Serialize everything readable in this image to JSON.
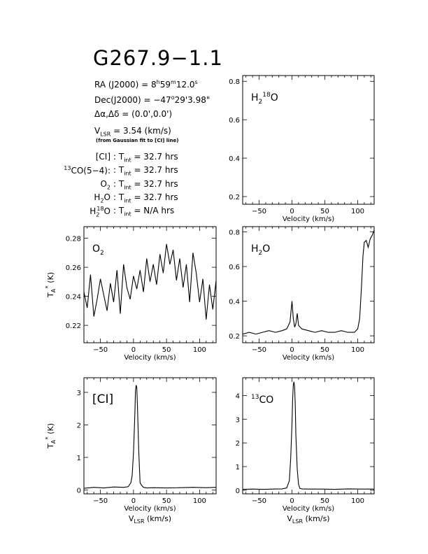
{
  "header": {
    "title": "G267.9−1.1",
    "ra": {
      "label": "RA (J2000) =",
      "h": "8",
      "m": "59",
      "s": "12.0"
    },
    "dec": {
      "label": "Dec(J2000) =",
      "deg": "−47",
      "rest": "29'3.98\""
    },
    "offset": "Δα,Δδ = (0.0',0.0')",
    "vlsr": {
      "prefix": "V",
      "sub": "LSR",
      "rest": " = 3.54 (km/s)"
    },
    "vlsr_note": "(from Gaussian fit to [CI] line)",
    "integrations": [
      {
        "pre": "",
        "sup": "",
        "sub": "",
        "name": "[CI]",
        "value": "32.7 hrs"
      },
      {
        "pre": "",
        "sup": "13",
        "sub": "",
        "name": "CO(5−4):",
        "value": "32.7 hrs"
      },
      {
        "pre": "O",
        "sup": "",
        "sub": "2",
        "name": "",
        "value": "32.7 hrs"
      },
      {
        "pre": "H",
        "sup": "",
        "sub": "2",
        "name": "O",
        "value": "32.7 hrs"
      },
      {
        "pre": "H",
        "sup": "18",
        "sub": "2",
        "name": "O",
        "value": "N/A hrs"
      }
    ],
    "tint_label": "T",
    "tint_sub": "int"
  },
  "chart_data": [
    {
      "type": "line",
      "panel": "h2-18o",
      "label": "H218O",
      "xlabel": "Velocity (km/s)",
      "ylabel": "",
      "xlim": [
        -75,
        125
      ],
      "ylim": [
        0.16,
        0.83
      ],
      "xticks": [
        -50,
        0,
        50,
        100
      ],
      "yticks": [
        0.2,
        0.4,
        0.6,
        0.8
      ],
      "series": []
    },
    {
      "type": "line",
      "panel": "o2",
      "label": "O2",
      "xlabel": "Velocity (km/s)",
      "ylabel": "TA* (K)",
      "xlim": [
        -75,
        125
      ],
      "ylim": [
        0.208,
        0.288
      ],
      "xticks": [
        -50,
        0,
        50,
        100
      ],
      "yticks": [
        0.22,
        0.24,
        0.26,
        0.28
      ],
      "series": [
        {
          "x": [
            -75,
            -70,
            -65,
            -60,
            -55,
            -50,
            -45,
            -40,
            -35,
            -30,
            -25,
            -20,
            -15,
            -10,
            -5,
            0,
            5,
            10,
            15,
            20,
            25,
            30,
            35,
            40,
            45,
            50,
            55,
            60,
            65,
            70,
            75,
            80,
            85,
            90,
            95,
            100,
            105,
            110,
            115,
            120,
            125
          ],
          "y": [
            0.243,
            0.232,
            0.255,
            0.226,
            0.238,
            0.252,
            0.241,
            0.23,
            0.249,
            0.236,
            0.258,
            0.228,
            0.262,
            0.246,
            0.238,
            0.254,
            0.245,
            0.258,
            0.243,
            0.266,
            0.25,
            0.262,
            0.248,
            0.269,
            0.256,
            0.276,
            0.262,
            0.272,
            0.251,
            0.266,
            0.246,
            0.262,
            0.236,
            0.27,
            0.256,
            0.236,
            0.252,
            0.224,
            0.248,
            0.231,
            0.251
          ]
        }
      ]
    },
    {
      "type": "line",
      "panel": "h2o",
      "label": "H2O",
      "xlabel": "Velocity (km/s)",
      "ylabel": "",
      "xlim": [
        -75,
        125
      ],
      "ylim": [
        0.16,
        0.83
      ],
      "xticks": [
        -50,
        0,
        50,
        100
      ],
      "yticks": [
        0.2,
        0.4,
        0.6,
        0.8
      ],
      "series": [
        {
          "x": [
            -75,
            -65,
            -55,
            -45,
            -35,
            -25,
            -15,
            -8,
            -3,
            0,
            2,
            4,
            6,
            8,
            10,
            15,
            25,
            35,
            45,
            55,
            65,
            75,
            85,
            95,
            100,
            103,
            106,
            108,
            110,
            113,
            116,
            119,
            122,
            125
          ],
          "y": [
            0.21,
            0.22,
            0.21,
            0.22,
            0.23,
            0.22,
            0.23,
            0.24,
            0.28,
            0.4,
            0.3,
            0.25,
            0.27,
            0.33,
            0.26,
            0.24,
            0.23,
            0.22,
            0.23,
            0.22,
            0.22,
            0.23,
            0.22,
            0.22,
            0.24,
            0.3,
            0.5,
            0.66,
            0.74,
            0.75,
            0.71,
            0.76,
            0.78,
            0.81
          ]
        }
      ]
    },
    {
      "type": "line",
      "panel": "ci",
      "label": "[CI]",
      "xlabel": "Velocity (km/s)",
      "xlabel2": "VLSR (km/s)",
      "ylabel": "TA* (K)",
      "xlim": [
        -75,
        125
      ],
      "ylim": [
        -0.12,
        3.45
      ],
      "xticks": [
        -50,
        0,
        50,
        100
      ],
      "yticks": [
        0,
        1,
        2,
        3
      ],
      "series": [
        {
          "x": [
            -75,
            -60,
            -45,
            -30,
            -15,
            -8,
            -4,
            -2,
            0,
            2,
            3,
            4,
            5,
            6,
            8,
            10,
            12,
            15,
            20,
            30,
            50,
            70,
            90,
            110,
            125
          ],
          "y": [
            0.05,
            0.08,
            0.06,
            0.09,
            0.08,
            0.1,
            0.22,
            0.45,
            1.15,
            2.3,
            3.05,
            3.22,
            3.15,
            2.6,
            1.2,
            0.22,
            0.15,
            0.08,
            0.06,
            0.07,
            0.06,
            0.07,
            0.08,
            0.07,
            0.08
          ]
        }
      ]
    },
    {
      "type": "line",
      "panel": "13co",
      "label": "13CO",
      "xlabel": "Velocity (km/s)",
      "xlabel2": "VLSR (km/s)",
      "ylabel": "",
      "xlim": [
        -75,
        125
      ],
      "ylim": [
        -0.15,
        4.75
      ],
      "xticks": [
        -50,
        0,
        50,
        100
      ],
      "yticks": [
        0,
        1,
        2,
        3,
        4
      ],
      "series": [
        {
          "x": [
            -75,
            -60,
            -45,
            -30,
            -15,
            -8,
            -4,
            -2,
            0,
            1,
            2,
            3,
            4,
            5,
            6,
            8,
            10,
            12,
            15,
            25,
            45,
            65,
            85,
            105,
            125
          ],
          "y": [
            0.04,
            0.05,
            0.04,
            0.05,
            0.06,
            0.1,
            0.4,
            1.3,
            2.8,
            3.8,
            4.45,
            4.58,
            4.35,
            3.6,
            2.3,
            0.9,
            0.25,
            0.08,
            0.06,
            0.05,
            0.05,
            0.04,
            0.06,
            0.05,
            0.05
          ]
        }
      ]
    }
  ]
}
